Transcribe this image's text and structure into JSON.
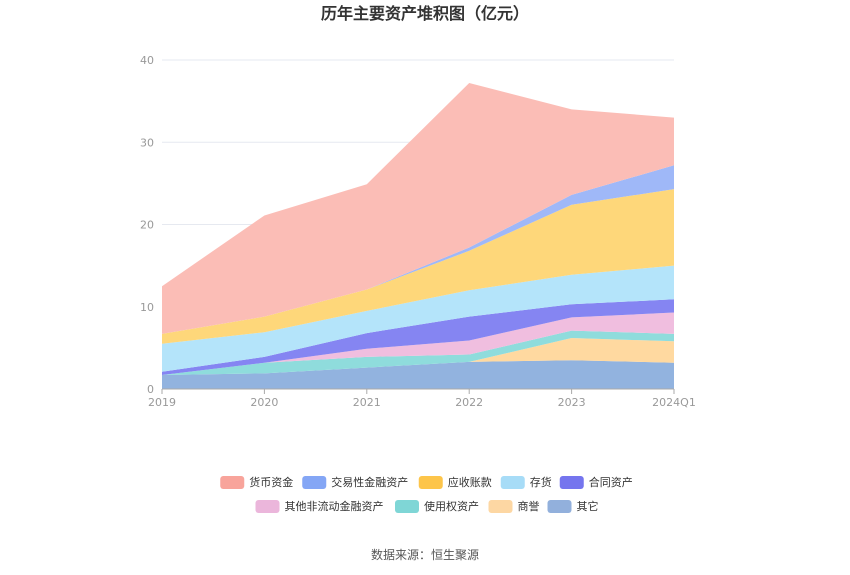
{
  "chart_data": {
    "type": "area",
    "stacked": true,
    "title": "历年主要资产堆积图（亿元）",
    "categories": [
      "2019",
      "2020",
      "2021",
      "2022",
      "2023",
      "2024Q1"
    ],
    "ylim": [
      0,
      40
    ],
    "yticks": [
      0,
      10,
      20,
      30,
      40
    ],
    "grid": true,
    "legend_position": "bottom",
    "series": [
      {
        "name": "其它",
        "color": "#92b3df",
        "values": [
          1.7,
          1.9,
          2.6,
          3.3,
          3.5,
          3.2
        ]
      },
      {
        "name": "商誉",
        "color": "#ffd9a0",
        "values": [
          0.0,
          0.0,
          0.0,
          0.0,
          2.7,
          2.6
        ]
      },
      {
        "name": "使用权资产",
        "color": "#8fdcdc",
        "values": [
          0.0,
          1.3,
          1.3,
          0.9,
          0.9,
          0.9
        ]
      },
      {
        "name": "其他非流动金融资产",
        "color": "#f0bedf",
        "values": [
          0.0,
          0.0,
          1.0,
          1.7,
          1.6,
          2.6
        ]
      },
      {
        "name": "合同资产",
        "color": "#8585f2",
        "values": [
          0.4,
          0.7,
          1.9,
          2.9,
          1.6,
          1.6
        ]
      },
      {
        "name": "存货",
        "color": "#b4e4fa",
        "values": [
          3.4,
          3.0,
          2.7,
          3.2,
          3.6,
          4.1
        ]
      },
      {
        "name": "应收账款",
        "color": "#fed77a",
        "values": [
          1.2,
          1.9,
          2.6,
          4.8,
          8.5,
          9.3
        ]
      },
      {
        "name": "交易性金融资产",
        "color": "#9fb8f8",
        "values": [
          0.0,
          0.0,
          0.0,
          0.4,
          1.2,
          2.9
        ]
      },
      {
        "name": "货币资金",
        "color": "#fbbdb6",
        "values": [
          5.8,
          12.3,
          12.8,
          20.0,
          10.4,
          5.8
        ]
      }
    ],
    "legend_order": [
      "货币资金",
      "交易性金融资产",
      "应收账款",
      "存货",
      "合同资产",
      "其他非流动金融资产",
      "使用权资产",
      "商誉",
      "其它"
    ],
    "legend_swatch_colors": {
      "货币资金": "#f8a49b",
      "交易性金融资产": "#84a6f5",
      "应收账款": "#fdc54a",
      "存货": "#a7dcf7",
      "合同资产": "#7575ee",
      "其他非流动金融资产": "#ebb6db",
      "使用权资产": "#7fd6d6",
      "商誉": "#fdd7a3",
      "其它": "#92b0dc"
    }
  },
  "source_note": "数据来源：恒生聚源"
}
